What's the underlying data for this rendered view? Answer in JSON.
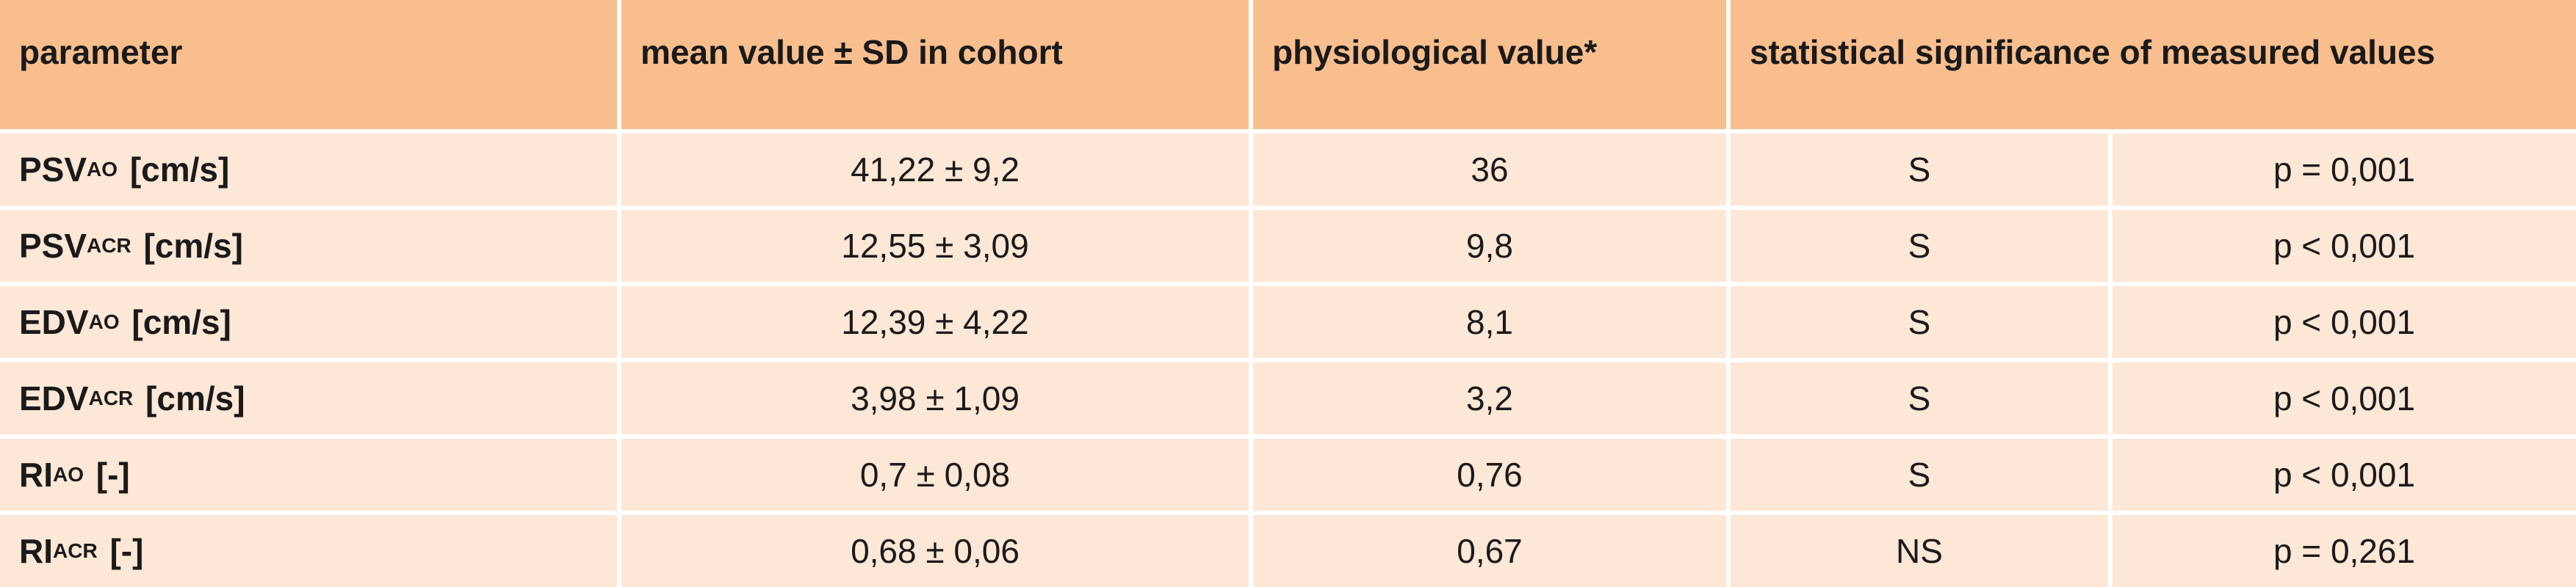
{
  "header": {
    "parameter": "parameter",
    "mean": "mean value ± SD in cohort",
    "physio": "physiological value*",
    "significance": "statistical significance of measured values"
  },
  "rows": [
    {
      "param_main": "PSV",
      "param_sub": "AO",
      "unit": "[cm/s]",
      "mean": "41,22 ± 9,2",
      "physio": "36",
      "sig": "S",
      "p": "p = 0,001"
    },
    {
      "param_main": "PSV",
      "param_sub": "ACR",
      "unit": "[cm/s]",
      "mean": "12,55 ± 3,09",
      "physio": "9,8",
      "sig": "S",
      "p": "p < 0,001"
    },
    {
      "param_main": "EDV",
      "param_sub": "AO",
      "unit": "[cm/s]",
      "mean": "12,39 ± 4,22",
      "physio": "8,1",
      "sig": "S",
      "p": "p < 0,001"
    },
    {
      "param_main": "EDV",
      "param_sub": "ACR",
      "unit": "[cm/s]",
      "mean": "3,98 ± 1,09",
      "physio": "3,2",
      "sig": "S",
      "p": "p < 0,001"
    },
    {
      "param_main": "RI",
      "param_sub": "AO",
      "unit": "[-]",
      "mean": "0,7 ± 0,08",
      "physio": "0,76",
      "sig": "S",
      "p": "p < 0,001"
    },
    {
      "param_main": "RI",
      "param_sub": "ACR",
      "unit": "[-]",
      "mean": "0,68 ± 0,06",
      "physio": "0,67",
      "sig": "NS",
      "p": "p = 0,261"
    }
  ],
  "colors": {
    "header_bg": "#f9be8e",
    "row_bg": "#fde7d6"
  }
}
